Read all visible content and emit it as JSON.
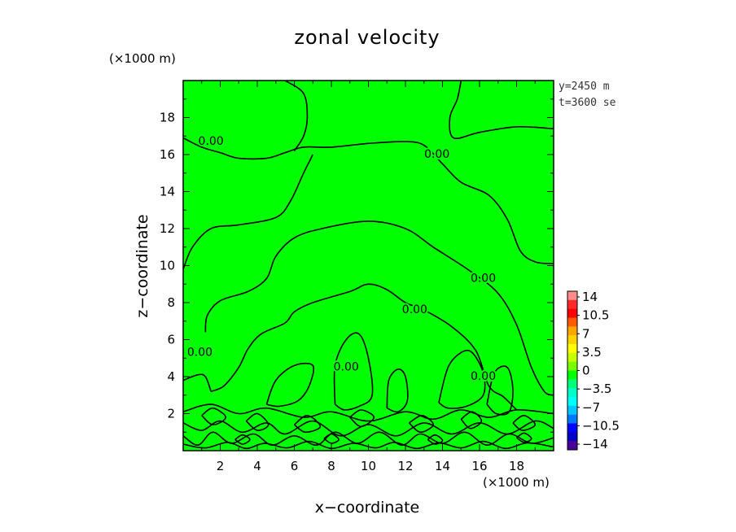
{
  "chart_data": {
    "type": "contour",
    "title": "zonal velocity",
    "xlabel": "x−coordinate",
    "ylabel": "z−coordinate",
    "x_unit": "(×1000 m)",
    "y_unit": "(×1000 m)",
    "xlim": [
      0,
      20
    ],
    "ylim": [
      0,
      20
    ],
    "x_ticks": [
      2,
      4,
      6,
      8,
      10,
      12,
      14,
      16,
      18
    ],
    "y_ticks": [
      2,
      4,
      6,
      8,
      10,
      12,
      14,
      16,
      18
    ],
    "info": [
      "y=2450 m",
      "t=3600 se"
    ],
    "contour_level": "0.00",
    "contour_labels": [
      {
        "text": "0.00",
        "x": 1.5,
        "y": 16.7
      },
      {
        "text": "0.00",
        "x": 13.7,
        "y": 16.0
      },
      {
        "text": "0.00",
        "x": 16.2,
        "y": 9.3
      },
      {
        "text": "0.00",
        "x": 12.5,
        "y": 7.6
      },
      {
        "text": "0.00",
        "x": 0.9,
        "y": 5.3
      },
      {
        "text": "0.00",
        "x": 8.8,
        "y": 4.5
      },
      {
        "text": "0.00",
        "x": 16.2,
        "y": 4.0
      }
    ],
    "contour_lines": [
      [
        [
          0.0,
          16.9
        ],
        [
          1.0,
          16.4
        ],
        [
          2.0,
          16.1
        ],
        [
          3.0,
          15.8
        ],
        [
          4.5,
          15.8
        ],
        [
          5.5,
          16.1
        ],
        [
          6.5,
          16.4
        ],
        [
          8.0,
          16.4
        ],
        [
          10.0,
          16.6
        ],
        [
          12.0,
          16.7
        ],
        [
          13.0,
          16.5
        ],
        [
          14.0,
          15.5
        ],
        [
          15.0,
          14.5
        ],
        [
          16.5,
          13.8
        ],
        [
          17.5,
          12.5
        ],
        [
          18.2,
          10.8
        ],
        [
          19.0,
          10.2
        ],
        [
          20.0,
          10.1
        ]
      ],
      [
        [
          0.0,
          9.8
        ],
        [
          0.5,
          11.0
        ],
        [
          1.5,
          12.0
        ],
        [
          3.0,
          12.2
        ],
        [
          5.0,
          12.6
        ],
        [
          5.8,
          13.5
        ],
        [
          6.5,
          15.0
        ],
        [
          7.0,
          16.0
        ]
      ],
      [
        [
          5.5,
          20.0
        ],
        [
          6.5,
          19.3
        ],
        [
          6.7,
          18.0
        ],
        [
          6.5,
          17.0
        ],
        [
          6.0,
          16.2
        ]
      ],
      [
        [
          15.0,
          20.0
        ],
        [
          14.8,
          19.0
        ],
        [
          14.4,
          18.0
        ],
        [
          14.6,
          16.9
        ],
        [
          16.0,
          17.2
        ],
        [
          18.0,
          17.5
        ],
        [
          20.0,
          17.4
        ]
      ],
      [
        [
          1.2,
          6.4
        ],
        [
          1.3,
          7.3
        ],
        [
          2.0,
          8.1
        ],
        [
          3.5,
          8.6
        ],
        [
          4.5,
          9.3
        ],
        [
          5.0,
          10.5
        ],
        [
          6.0,
          11.5
        ],
        [
          7.5,
          12.0
        ],
        [
          10.0,
          12.4
        ],
        [
          12.0,
          12.0
        ],
        [
          13.5,
          11.0
        ],
        [
          15.5,
          9.7
        ],
        [
          17.0,
          8.5
        ],
        [
          18.0,
          6.8
        ],
        [
          18.8,
          4.5
        ],
        [
          19.5,
          3.2
        ],
        [
          20.0,
          3.0
        ]
      ],
      [
        [
          1.5,
          3.2
        ],
        [
          2.2,
          3.5
        ],
        [
          3.0,
          4.5
        ],
        [
          3.5,
          5.5
        ],
        [
          4.2,
          6.3
        ],
        [
          5.5,
          6.9
        ],
        [
          6.0,
          7.5
        ],
        [
          7.0,
          8.0
        ],
        [
          9.0,
          8.6
        ],
        [
          10.0,
          9.0
        ],
        [
          11.0,
          8.7
        ],
        [
          12.0,
          8.0
        ],
        [
          13.0,
          7.6
        ],
        [
          14.5,
          6.7
        ],
        [
          15.8,
          5.4
        ],
        [
          16.5,
          3.5
        ],
        [
          17.3,
          2.9
        ],
        [
          18.0,
          2.2
        ]
      ],
      [
        [
          1.5,
          3.2
        ],
        [
          1.2,
          4.0
        ],
        [
          0.8,
          4.1
        ],
        [
          0.0,
          3.8
        ]
      ],
      [
        [
          4.5,
          2.5
        ],
        [
          5.0,
          3.8
        ],
        [
          6.0,
          4.6
        ],
        [
          7.0,
          4.6
        ],
        [
          6.8,
          3.5
        ],
        [
          6.2,
          2.7
        ],
        [
          5.2,
          2.4
        ],
        [
          4.5,
          2.5
        ]
      ],
      [
        [
          8.2,
          2.5
        ],
        [
          8.2,
          4.6
        ],
        [
          8.8,
          6.0
        ],
        [
          9.5,
          6.3
        ],
        [
          10.0,
          5.0
        ],
        [
          10.2,
          3.0
        ],
        [
          9.5,
          2.4
        ],
        [
          8.7,
          2.2
        ],
        [
          8.2,
          2.5
        ]
      ],
      [
        [
          11.0,
          2.3
        ],
        [
          11.1,
          3.8
        ],
        [
          11.6,
          4.4
        ],
        [
          12.0,
          4.0
        ],
        [
          12.1,
          2.7
        ],
        [
          11.6,
          2.1
        ],
        [
          11.0,
          2.3
        ]
      ],
      [
        [
          13.8,
          2.6
        ],
        [
          14.3,
          4.5
        ],
        [
          15.0,
          5.3
        ],
        [
          15.6,
          5.3
        ],
        [
          16.2,
          4.2
        ],
        [
          16.2,
          3.0
        ],
        [
          15.3,
          2.4
        ],
        [
          14.3,
          2.3
        ],
        [
          13.8,
          2.6
        ]
      ],
      [
        [
          16.4,
          2.5
        ],
        [
          16.8,
          4.2
        ],
        [
          17.5,
          4.5
        ],
        [
          17.8,
          3.3
        ],
        [
          17.6,
          2.1
        ],
        [
          16.9,
          2.0
        ],
        [
          16.4,
          2.5
        ]
      ],
      [
        [
          0.0,
          2.1
        ],
        [
          1.5,
          2.5
        ],
        [
          3.0,
          2.0
        ],
        [
          4.5,
          2.3
        ],
        [
          6.5,
          1.8
        ],
        [
          8.0,
          2.1
        ],
        [
          10.0,
          1.6
        ],
        [
          12.0,
          2.1
        ],
        [
          13.5,
          1.7
        ],
        [
          15.0,
          2.2
        ],
        [
          16.5,
          1.8
        ],
        [
          18.0,
          2.2
        ],
        [
          20.0,
          2.0
        ]
      ],
      [
        [
          0.0,
          1.5
        ],
        [
          1.0,
          1.1
        ],
        [
          2.0,
          1.6
        ],
        [
          3.2,
          1.0
        ],
        [
          4.5,
          1.5
        ],
        [
          5.5,
          0.9
        ],
        [
          7.0,
          1.6
        ],
        [
          8.5,
          0.8
        ],
        [
          10.0,
          1.4
        ],
        [
          11.5,
          0.8
        ],
        [
          13.0,
          1.5
        ],
        [
          14.5,
          0.9
        ],
        [
          16.0,
          1.5
        ],
        [
          17.5,
          0.9
        ],
        [
          19.0,
          1.6
        ],
        [
          20.0,
          1.2
        ]
      ],
      [
        [
          0.0,
          0.8
        ],
        [
          0.8,
          0.3
        ],
        [
          1.6,
          1.0
        ],
        [
          2.6,
          0.4
        ],
        [
          3.8,
          0.9
        ],
        [
          4.8,
          0.3
        ],
        [
          6.0,
          0.8
        ],
        [
          7.2,
          0.3
        ],
        [
          8.2,
          1.0
        ],
        [
          9.4,
          0.4
        ],
        [
          10.6,
          1.0
        ],
        [
          11.8,
          0.3
        ],
        [
          12.8,
          0.9
        ],
        [
          14.0,
          0.4
        ],
        [
          15.2,
          1.0
        ],
        [
          16.4,
          0.3
        ],
        [
          17.6,
          0.9
        ],
        [
          18.8,
          0.4
        ],
        [
          20.0,
          0.7
        ]
      ],
      [
        [
          0.0,
          0.35
        ],
        [
          1.2,
          0.15
        ],
        [
          2.4,
          0.45
        ],
        [
          3.4,
          0.12
        ],
        [
          4.4,
          0.4
        ],
        [
          5.6,
          0.15
        ],
        [
          6.8,
          0.5
        ],
        [
          8.0,
          0.12
        ],
        [
          9.2,
          0.4
        ],
        [
          10.4,
          0.15
        ],
        [
          11.4,
          0.45
        ],
        [
          12.6,
          0.12
        ],
        [
          13.8,
          0.42
        ],
        [
          15.0,
          0.15
        ],
        [
          16.2,
          0.5
        ],
        [
          17.4,
          0.12
        ],
        [
          18.6,
          0.42
        ],
        [
          20.0,
          0.2
        ]
      ],
      [
        [
          1.0,
          1.9
        ],
        [
          1.6,
          2.3
        ],
        [
          2.3,
          1.8
        ],
        [
          1.6,
          1.4
        ],
        [
          1.0,
          1.9
        ]
      ],
      [
        [
          3.4,
          1.6
        ],
        [
          4.0,
          2.0
        ],
        [
          4.6,
          1.4
        ],
        [
          4.0,
          1.1
        ],
        [
          3.4,
          1.6
        ]
      ],
      [
        [
          6.0,
          1.4
        ],
        [
          6.7,
          1.9
        ],
        [
          7.4,
          1.3
        ],
        [
          6.6,
          1.0
        ],
        [
          6.0,
          1.4
        ]
      ],
      [
        [
          9.0,
          1.8
        ],
        [
          9.6,
          2.2
        ],
        [
          10.3,
          1.8
        ],
        [
          9.6,
          1.3
        ],
        [
          9.0,
          1.8
        ]
      ],
      [
        [
          12.2,
          1.5
        ],
        [
          12.9,
          1.9
        ],
        [
          13.5,
          1.4
        ],
        [
          12.8,
          1.0
        ],
        [
          12.2,
          1.5
        ]
      ],
      [
        [
          15.0,
          1.7
        ],
        [
          15.6,
          2.1
        ],
        [
          16.1,
          1.6
        ],
        [
          15.5,
          1.2
        ],
        [
          15.0,
          1.7
        ]
      ],
      [
        [
          17.8,
          1.5
        ],
        [
          18.4,
          1.9
        ],
        [
          19.0,
          1.4
        ],
        [
          18.3,
          1.1
        ],
        [
          17.8,
          1.5
        ]
      ],
      [
        [
          2.8,
          0.6
        ],
        [
          3.2,
          0.85
        ],
        [
          3.6,
          0.6
        ],
        [
          3.2,
          0.35
        ],
        [
          2.8,
          0.6
        ]
      ],
      [
        [
          7.6,
          0.65
        ],
        [
          8.0,
          0.9
        ],
        [
          8.4,
          0.6
        ],
        [
          8.0,
          0.4
        ],
        [
          7.6,
          0.65
        ]
      ],
      [
        [
          13.2,
          0.6
        ],
        [
          13.6,
          0.85
        ],
        [
          14.0,
          0.55
        ],
        [
          13.6,
          0.35
        ],
        [
          13.2,
          0.6
        ]
      ],
      [
        [
          18.0,
          0.7
        ],
        [
          18.4,
          0.95
        ],
        [
          18.8,
          0.65
        ],
        [
          18.4,
          0.45
        ],
        [
          18.0,
          0.7
        ]
      ]
    ],
    "fill_value": 0,
    "colorbar": {
      "labels": [
        "14",
        "10.5",
        "7",
        "3.5",
        "0",
        "−3.5",
        "−7",
        "−10.5",
        "−14"
      ],
      "colors": [
        "#ff8c8c",
        "#ff2a2a",
        "#ff0000",
        "#ff5a00",
        "#ffa500",
        "#ffd200",
        "#ffff00",
        "#c8ff00",
        "#78ff00",
        "#00ff00",
        "#00ff78",
        "#00ffc8",
        "#00ffff",
        "#00c8ff",
        "#0078ff",
        "#0000ff",
        "#0000c8",
        "#4b0096"
      ]
    },
    "colors": {
      "field": "#00ff00",
      "line": "#000000"
    }
  }
}
